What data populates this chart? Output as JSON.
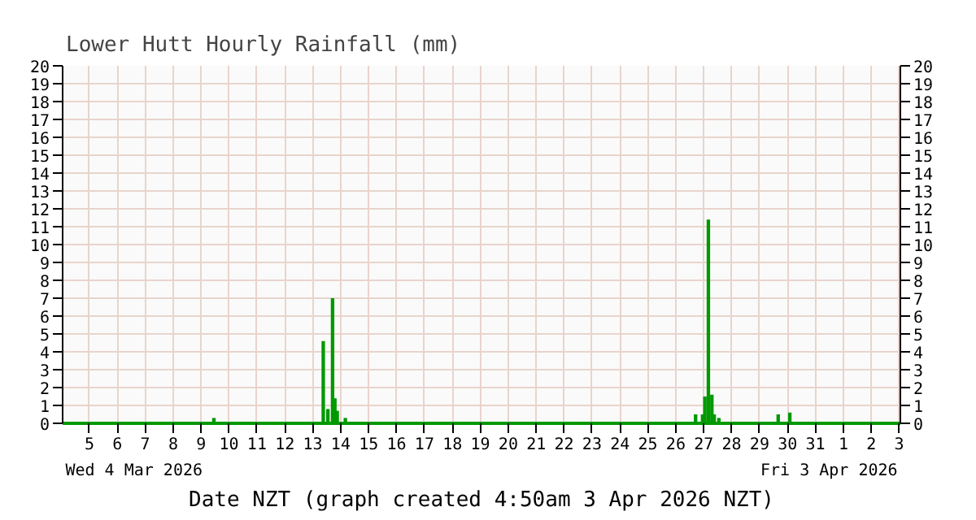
{
  "chart_data": {
    "type": "bar",
    "title": "Lower Hutt Hourly Rainfall (mm)",
    "xlabel": "Date NZT (graph created 4:50am 3 Apr 2026 NZT)",
    "annotations": [
      "Wed 4 Mar 2026",
      "Fri 3 Apr 2026"
    ],
    "x": [
      "2026-03-09T11:00",
      "2026-03-13T09:00",
      "2026-03-13T13:00",
      "2026-03-13T17:00",
      "2026-03-13T19:00",
      "2026-03-13T21:00",
      "2026-03-14T04:00",
      "2026-03-26T17:00",
      "2026-03-26T23:00",
      "2026-03-27T01:00",
      "2026-03-27T04:00",
      "2026-03-27T07:00",
      "2026-03-27T09:00",
      "2026-03-27T13:00",
      "2026-03-29T16:00",
      "2026-03-30T02:00"
    ],
    "values": [
      0.3,
      4.6,
      0.8,
      7.0,
      1.4,
      0.7,
      0.3,
      0.5,
      0.5,
      1.5,
      11.4,
      1.6,
      0.5,
      0.3,
      0.5,
      0.6
    ],
    "color": "#009900",
    "xlim": [
      "2026-03-04T01:00",
      "2026-04-03T01:00"
    ],
    "xticks": [
      {
        "value": "2026-03-05",
        "label": "5"
      },
      {
        "value": "2026-03-06",
        "label": "6"
      },
      {
        "value": "2026-03-07",
        "label": "7"
      },
      {
        "value": "2026-03-08",
        "label": "8"
      },
      {
        "value": "2026-03-09",
        "label": "9"
      },
      {
        "value": "2026-03-10",
        "label": "10"
      },
      {
        "value": "2026-03-11",
        "label": "11"
      },
      {
        "value": "2026-03-12",
        "label": "12"
      },
      {
        "value": "2026-03-13",
        "label": "13"
      },
      {
        "value": "2026-03-14",
        "label": "14"
      },
      {
        "value": "2026-03-15",
        "label": "15"
      },
      {
        "value": "2026-03-16",
        "label": "16"
      },
      {
        "value": "2026-03-17",
        "label": "17"
      },
      {
        "value": "2026-03-18",
        "label": "18"
      },
      {
        "value": "2026-03-19",
        "label": "19"
      },
      {
        "value": "2026-03-20",
        "label": "20"
      },
      {
        "value": "2026-03-21",
        "label": "21"
      },
      {
        "value": "2026-03-22",
        "label": "22"
      },
      {
        "value": "2026-03-23",
        "label": "23"
      },
      {
        "value": "2026-03-24",
        "label": "24"
      },
      {
        "value": "2026-03-25",
        "label": "25"
      },
      {
        "value": "2026-03-26",
        "label": "26"
      },
      {
        "value": "2026-03-27",
        "label": "27"
      },
      {
        "value": "2026-03-28",
        "label": "28"
      },
      {
        "value": "2026-03-29",
        "label": "29"
      },
      {
        "value": "2026-03-30",
        "label": "30"
      },
      {
        "value": "2026-03-31",
        "label": "31"
      },
      {
        "value": "2026-04-01",
        "label": "1"
      },
      {
        "value": "2026-04-02",
        "label": "2"
      },
      {
        "value": "2026-04-03",
        "label": "3"
      }
    ],
    "ylim": [
      0,
      20
    ],
    "yticks": [
      0,
      1,
      2,
      3,
      4,
      5,
      6,
      7,
      8,
      9,
      10,
      11,
      12,
      13,
      14,
      15,
      16,
      17,
      18,
      19,
      20
    ],
    "y2lim": [
      0,
      20
    ],
    "y2ticks": [
      0,
      1,
      2,
      3,
      4,
      5,
      6,
      7,
      8,
      9,
      10,
      11,
      12,
      13,
      14,
      15,
      16,
      17,
      18,
      19,
      20
    ],
    "grid": true
  }
}
